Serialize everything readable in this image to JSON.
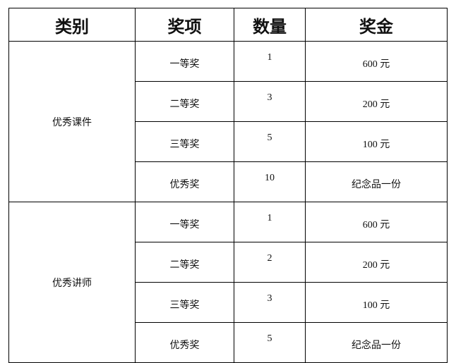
{
  "headers": [
    "类别",
    "奖项",
    "数量",
    "奖金"
  ],
  "groups": [
    {
      "category": "优秀课件",
      "rows": [
        {
          "award": "一等奖",
          "count": "1",
          "prize": "600 元"
        },
        {
          "award": "二等奖",
          "count": "3",
          "prize": "200 元"
        },
        {
          "award": "三等奖",
          "count": "5",
          "prize": "100 元"
        },
        {
          "award": "优秀奖",
          "count": "10",
          "prize": "纪念品一份"
        }
      ]
    },
    {
      "category": "优秀讲师",
      "rows": [
        {
          "award": "一等奖",
          "count": "1",
          "prize": "600 元"
        },
        {
          "award": "二等奖",
          "count": "2",
          "prize": "200 元"
        },
        {
          "award": "三等奖",
          "count": "3",
          "prize": "100 元"
        },
        {
          "award": "优秀奖",
          "count": "5",
          "prize": "纪念品一份"
        }
      ]
    }
  ]
}
